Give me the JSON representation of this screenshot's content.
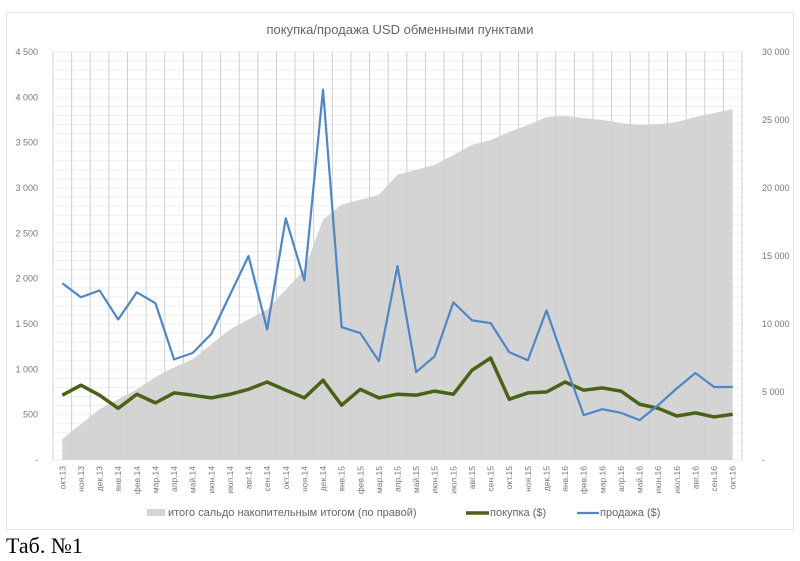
{
  "chart_data": {
    "type": "line",
    "title": "покупка/продажа USD обменными пунктами",
    "categories": [
      "окт.13",
      "ноя.13",
      "дек.13",
      "янв.14",
      "фев.14",
      "мар.14",
      "апр.14",
      "май.14",
      "июн.14",
      "июл.14",
      "авг.14",
      "сен.14",
      "окт.14",
      "ноя.14",
      "дек.14",
      "янв.15",
      "фев.15",
      "мар.15",
      "апр.15",
      "май.15",
      "июн.15",
      "июл.15",
      "авг.15",
      "сен.15",
      "окт.15",
      "ноя.15",
      "дек.15",
      "янв.16",
      "фев.16",
      "мар.16",
      "апр.16",
      "май.16",
      "июн.16",
      "июл.16",
      "авг.16",
      "сен.16",
      "окт.16"
    ],
    "left_axis": {
      "ylim": [
        0,
        4500
      ],
      "ticks": [
        "-",
        "500",
        "1 000",
        "1 500",
        "2 000",
        "2 500",
        "3 000",
        "3 500",
        "4 000",
        "4 500"
      ]
    },
    "right_axis": {
      "ylim": [
        0,
        30000
      ],
      "ticks": [
        "-",
        "5 000",
        "10 000",
        "15 000",
        "20 000",
        "25 000",
        "30 000"
      ]
    },
    "grid": true,
    "legend_position": "bottom",
    "series": [
      {
        "name": "итого сальдо накопительным итогом (по правой)",
        "type": "area",
        "axis": "right",
        "color": "#d4d4d4",
        "values": [
          1540,
          2640,
          3740,
          4470,
          5200,
          6090,
          6820,
          7400,
          8500,
          9600,
          10340,
          11070,
          12540,
          14000,
          17670,
          18770,
          19140,
          19500,
          20970,
          21330,
          21700,
          22430,
          23170,
          23530,
          24120,
          24630,
          25220,
          25290,
          25150,
          25000,
          24780,
          24630,
          24700,
          24850,
          25220,
          25510,
          25810
        ]
      },
      {
        "name": "покупка ($)",
        "type": "line",
        "axis": "left",
        "color": "#4a6218",
        "values": [
          715,
          825,
          715,
          570,
          725,
          630,
          740,
          715,
          685,
          725,
          780,
          860,
          770,
          685,
          880,
          605,
          780,
          685,
          725,
          715,
          760,
          725,
          990,
          1125,
          670,
          740,
          750,
          860,
          770,
          795,
          760,
          615,
          570,
          485,
          520,
          475,
          505
        ]
      },
      {
        "name": "продажа ($)",
        "type": "line",
        "axis": "left",
        "color": "#4f86c6",
        "values": [
          1950,
          1795,
          1870,
          1550,
          1850,
          1730,
          1110,
          1180,
          1390,
          1820,
          2250,
          1440,
          2665,
          1980,
          4085,
          1465,
          1400,
          1090,
          2140,
          970,
          1145,
          1740,
          1540,
          1510,
          1190,
          1100,
          1650,
          1060,
          495,
          560,
          520,
          440,
          605,
          790,
          960,
          805,
          805
        ]
      }
    ]
  },
  "caption": "Таб. №1"
}
